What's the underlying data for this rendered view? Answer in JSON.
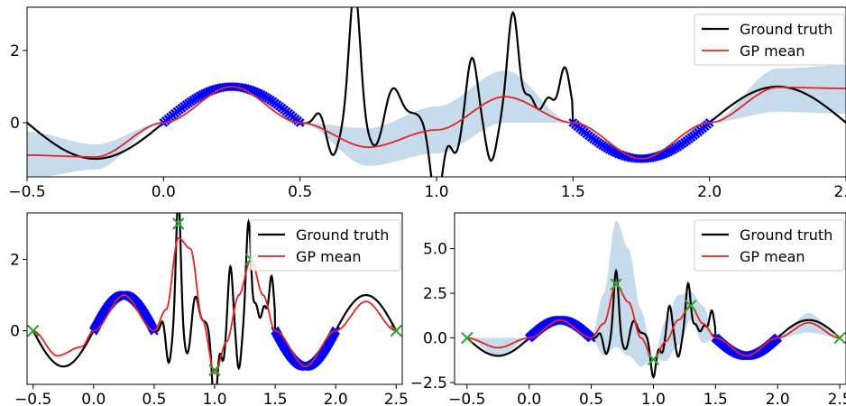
{
  "chart_data": [
    {
      "type": "line",
      "panel": "top",
      "xlim": [
        -0.5,
        2.5
      ],
      "ylim": [
        -1.5,
        3.2
      ],
      "xticks": [
        -0.5,
        0.0,
        0.5,
        1.0,
        1.5,
        2.0,
        2.5
      ],
      "xtick_labels": [
        "−0.5",
        "0.0",
        "0.5",
        "1.0",
        "1.5",
        "2.0",
        "2.5"
      ],
      "yticks": [
        0,
        2
      ],
      "ytick_labels": [
        "0",
        "2"
      ],
      "legend": [
        "Ground truth",
        "GP mean"
      ],
      "legend_position": "top-right",
      "train_ranges": [
        [
          0.0,
          0.5
        ],
        [
          1.5,
          2.0
        ]
      ],
      "test_points": [],
      "gp_mean": {
        "x": [
          -0.5,
          -0.25,
          0.0,
          0.25,
          0.5,
          0.75,
          1.0,
          1.25,
          1.5,
          1.75,
          2.0,
          2.25,
          2.5
        ],
        "y": [
          -0.9,
          -0.95,
          0.0,
          1.0,
          0.0,
          -0.68,
          -0.2,
          0.72,
          0.0,
          -1.0,
          0.0,
          0.98,
          0.95
        ]
      },
      "gp_band": {
        "x": [
          -0.5,
          -0.25,
          0.0,
          0.25,
          0.5,
          0.75,
          1.0,
          1.25,
          1.5,
          1.75,
          2.0,
          2.25,
          2.5
        ],
        "lower": [
          -1.55,
          -1.3,
          0.0,
          1.0,
          0.0,
          -1.2,
          -0.85,
          0.0,
          0.0,
          -1.0,
          0.0,
          0.3,
          0.25
        ],
        "upper": [
          -0.25,
          -0.6,
          0.0,
          1.0,
          0.0,
          -0.15,
          0.45,
          1.45,
          0.0,
          -1.0,
          0.0,
          1.5,
          1.6
        ]
      }
    },
    {
      "type": "line",
      "panel": "bottom-left",
      "xlim": [
        -0.55,
        2.55
      ],
      "ylim": [
        -1.5,
        3.3
      ],
      "xticks": [
        -0.5,
        0.0,
        0.5,
        1.0,
        1.5,
        2.0,
        2.5
      ],
      "xtick_labels": [
        "−0.5",
        "0.0",
        "0.5",
        "1.0",
        "1.5",
        "2.0",
        "2.5"
      ],
      "yticks": [
        0,
        2
      ],
      "ytick_labels": [
        "0",
        "2"
      ],
      "legend": [
        "Ground truth",
        "GP mean"
      ],
      "legend_position": "top-right",
      "train_ranges": [
        [
          0.0,
          0.5
        ],
        [
          1.5,
          2.0
        ]
      ],
      "test_points": [
        {
          "x": -0.5,
          "y": 0.0
        },
        {
          "x": 0.7,
          "y": 3.0
        },
        {
          "x": 1.0,
          "y": -1.1
        },
        {
          "x": 1.3,
          "y": 2.0
        },
        {
          "x": 2.5,
          "y": 0.0
        }
      ],
      "gp_mean": {
        "x": [
          -0.5,
          -0.3,
          -0.1,
          0.0,
          0.25,
          0.5,
          0.6,
          0.7,
          0.8,
          0.9,
          1.0,
          1.1,
          1.2,
          1.3,
          1.4,
          1.5,
          1.75,
          2.0,
          2.25,
          2.5
        ],
        "y": [
          0.0,
          -0.7,
          -0.45,
          0.0,
          1.0,
          0.0,
          0.6,
          2.6,
          2.3,
          0.3,
          -1.2,
          -0.3,
          1.0,
          2.0,
          1.0,
          0.0,
          -1.0,
          0.0,
          0.82,
          0.0
        ]
      },
      "gp_band": null
    },
    {
      "type": "line",
      "panel": "bottom-right",
      "xlim": [
        -0.6,
        2.55
      ],
      "ylim": [
        -2.6,
        7.0
      ],
      "xticks": [
        -0.5,
        0.0,
        0.5,
        1.0,
        1.5,
        2.0,
        2.5
      ],
      "xtick_labels": [
        "−0.5",
        "0.0",
        "0.5",
        "1.0",
        "1.5",
        "2.0",
        "2.5"
      ],
      "yticks": [
        -2.5,
        0.0,
        2.5,
        5.0
      ],
      "ytick_labels": [
        "−2.5",
        "0.0",
        "2.5",
        "5.0"
      ],
      "legend": [
        "Ground truth",
        "GP mean"
      ],
      "legend_position": "top-right",
      "train_ranges": [
        [
          0.0,
          0.5
        ],
        [
          1.5,
          2.0
        ]
      ],
      "test_points": [
        {
          "x": -0.5,
          "y": 0.0
        },
        {
          "x": 0.7,
          "y": 3.0
        },
        {
          "x": 1.0,
          "y": -1.2
        },
        {
          "x": 1.3,
          "y": 1.8
        },
        {
          "x": 2.5,
          "y": 0.0
        }
      ],
      "gp_mean": {
        "x": [
          -0.5,
          -0.25,
          0.0,
          0.25,
          0.5,
          0.6,
          0.7,
          0.8,
          0.9,
          1.0,
          1.1,
          1.2,
          1.3,
          1.4,
          1.5,
          1.75,
          2.0,
          2.25,
          2.5
        ],
        "y": [
          0.0,
          -0.55,
          0.0,
          1.0,
          0.0,
          0.8,
          3.0,
          2.0,
          0.0,
          -1.2,
          -0.2,
          1.0,
          1.8,
          0.8,
          0.0,
          -1.0,
          0.0,
          0.85,
          0.0
        ]
      },
      "gp_band": {
        "x": [
          -0.5,
          -0.25,
          0.0,
          0.25,
          0.5,
          0.6,
          0.7,
          0.8,
          0.9,
          1.0,
          1.1,
          1.2,
          1.3,
          1.4,
          1.5,
          1.75,
          2.0,
          2.25,
          2.5
        ],
        "lower": [
          0.0,
          -1.1,
          0.0,
          1.0,
          0.0,
          -1.0,
          -0.5,
          -1.0,
          -1.6,
          -1.2,
          -1.3,
          -0.4,
          1.0,
          -0.3,
          0.0,
          -1.0,
          0.0,
          0.3,
          0.0
        ],
        "upper": [
          0.0,
          0.0,
          0.0,
          1.0,
          0.0,
          2.5,
          6.6,
          5.0,
          1.6,
          -1.2,
          1.0,
          2.4,
          2.6,
          1.8,
          0.0,
          -1.0,
          0.0,
          1.4,
          0.0
        ]
      }
    }
  ],
  "colors": {
    "ground_truth": "#000000",
    "gp_mean": "#e8231f",
    "band": "#c6dbec",
    "train": "#0000ff",
    "test": "#2ca02c"
  }
}
